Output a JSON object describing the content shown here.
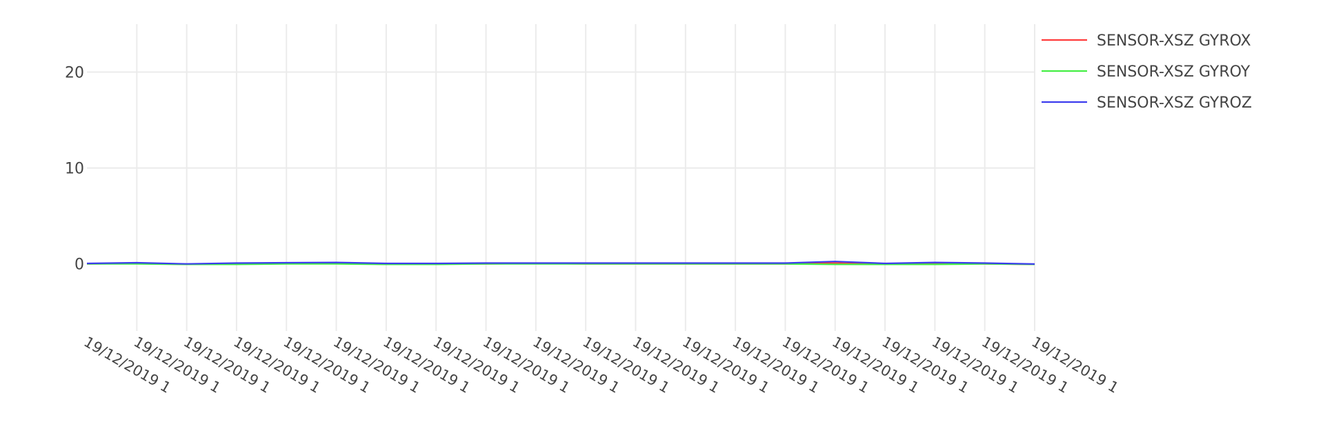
{
  "chart_data": {
    "type": "line",
    "title": "",
    "xlabel": "",
    "ylabel": "",
    "ylim": [
      -7,
      25
    ],
    "yticks": [
      0,
      10,
      20
    ],
    "x": [
      "19/12/2019 1",
      "19/12/2019 1",
      "19/12/2019 1",
      "19/12/2019 1",
      "19/12/2019 1",
      "19/12/2019 1",
      "19/12/2019 1",
      "19/12/2019 1",
      "19/12/2019 1",
      "19/12/2019 1",
      "19/12/2019 1",
      "19/12/2019 1",
      "19/12/2019 1",
      "19/12/2019 1",
      "19/12/2019 1",
      "19/12/2019 1",
      "19/12/2019 1",
      "19/12/2019 1",
      "19/12/2019 1",
      "19/12/2019 1"
    ],
    "series": [
      {
        "name": "SENSOR-XSZ GYROX",
        "color": "#ff3c3c",
        "values": [
          0.0,
          0.05,
          -0.05,
          0.0,
          0.05,
          0.1,
          -0.05,
          0.0,
          0.0,
          0.05,
          0.0,
          0.0,
          0.0,
          0.0,
          0.0,
          0.1,
          -0.05,
          0.05,
          0.0,
          -0.05
        ]
      },
      {
        "name": "SENSOR-XSZ GYROY",
        "color": "#44ee44",
        "values": [
          0.0,
          0.0,
          -0.05,
          -0.05,
          0.0,
          0.0,
          -0.05,
          -0.05,
          0.0,
          0.0,
          0.0,
          0.0,
          0.0,
          0.0,
          0.0,
          -0.05,
          -0.05,
          -0.05,
          0.0,
          -0.05
        ]
      },
      {
        "name": "SENSOR-XSZ GYROZ",
        "color": "#3c3cee",
        "values": [
          0.05,
          0.12,
          0.0,
          0.08,
          0.12,
          0.15,
          0.05,
          0.05,
          0.08,
          0.08,
          0.08,
          0.08,
          0.08,
          0.08,
          0.08,
          0.25,
          0.05,
          0.15,
          0.08,
          -0.02
        ]
      }
    ],
    "grid": true,
    "legend": "top-right"
  }
}
